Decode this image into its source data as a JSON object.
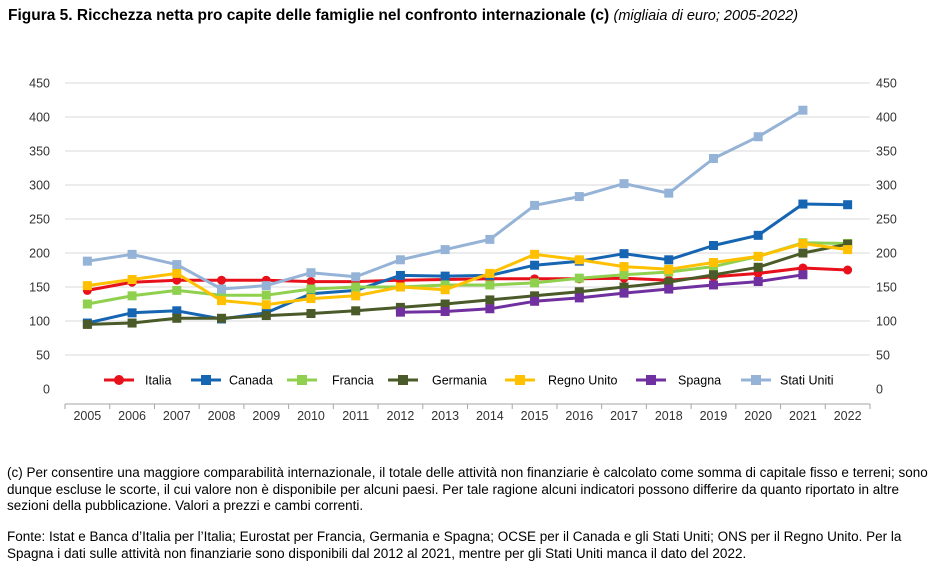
{
  "title": {
    "bold": "Figura 5. Ricchezza netta pro capite delle famiglie nel confronto internazionale (c)",
    "italic": "(migliaia di euro; 2005-2022)"
  },
  "chart_data": {
    "type": "line",
    "x": [
      "2005",
      "2006",
      "2007",
      "2008",
      "2009",
      "2010",
      "2011",
      "2012",
      "2013",
      "2014",
      "2015",
      "2016",
      "2017",
      "2018",
      "2019",
      "2020",
      "2021",
      "2022"
    ],
    "ylim": [
      0,
      450
    ],
    "yticks": [
      0,
      50,
      100,
      150,
      200,
      250,
      300,
      350,
      400,
      450
    ],
    "y_axis_right": true,
    "grid": true,
    "legend_position": "bottom-inside",
    "series": [
      {
        "name": "Italia",
        "color": "#e8101a",
        "values": [
          145,
          157,
          160,
          160,
          160,
          158,
          158,
          160,
          161,
          162,
          162,
          162,
          163,
          160,
          165,
          170,
          178,
          175
        ]
      },
      {
        "name": "Canada",
        "color": "#1565b2",
        "values": [
          97,
          112,
          115,
          103,
          112,
          140,
          145,
          167,
          166,
          167,
          182,
          188,
          199,
          190,
          211,
          226,
          272,
          271
        ]
      },
      {
        "name": "Francia",
        "color": "#8fd14f",
        "values": [
          125,
          137,
          145,
          138,
          138,
          147,
          150,
          150,
          153,
          153,
          156,
          163,
          168,
          172,
          180,
          195,
          215,
          214
        ]
      },
      {
        "name": "Germania",
        "color": "#4a5a28",
        "values": [
          95,
          97,
          104,
          104,
          108,
          111,
          115,
          120,
          125,
          131,
          137,
          143,
          150,
          157,
          168,
          179,
          200,
          213
        ]
      },
      {
        "name": "Regno Unito",
        "color": "#ffc000",
        "values": [
          152,
          161,
          170,
          130,
          124,
          133,
          137,
          150,
          146,
          170,
          198,
          190,
          180,
          176,
          186,
          195,
          214,
          205
        ]
      },
      {
        "name": "Spagna",
        "color": "#7030a0",
        "values": [
          null,
          null,
          null,
          null,
          null,
          null,
          null,
          113,
          114,
          118,
          129,
          134,
          141,
          147,
          153,
          158,
          168,
          null
        ]
      },
      {
        "name": "Stati Uniti",
        "color": "#95b3d7",
        "values": [
          188,
          198,
          183,
          147,
          152,
          171,
          165,
          190,
          205,
          220,
          270,
          283,
          302,
          288,
          339,
          371,
          410,
          null
        ]
      }
    ]
  },
  "notes": {
    "note_c": "(c) Per consentire una maggiore comparabilità internazionale, il totale delle attività non finanziarie è calcolato come somma di capitale fisso e terreni; sono dunque escluse le scorte, il cui valore non è disponibile per alcuni paesi. Per tale ragione alcuni indicatori possono differire da quanto riportato in altre sezioni della pubblicazione. Valori a prezzi e cambi correnti.",
    "source": "Fonte: Istat e Banca d’Italia per l’Italia; Eurostat per Francia, Germania e Spagna; OCSE per il Canada e gli Stati Uniti; ONS per il Regno Unito. Per la Spagna i dati sulle attività non finanziarie sono disponibili dal 2012 al 2021, mentre per gli Stati Uniti manca il dato del 2022."
  }
}
